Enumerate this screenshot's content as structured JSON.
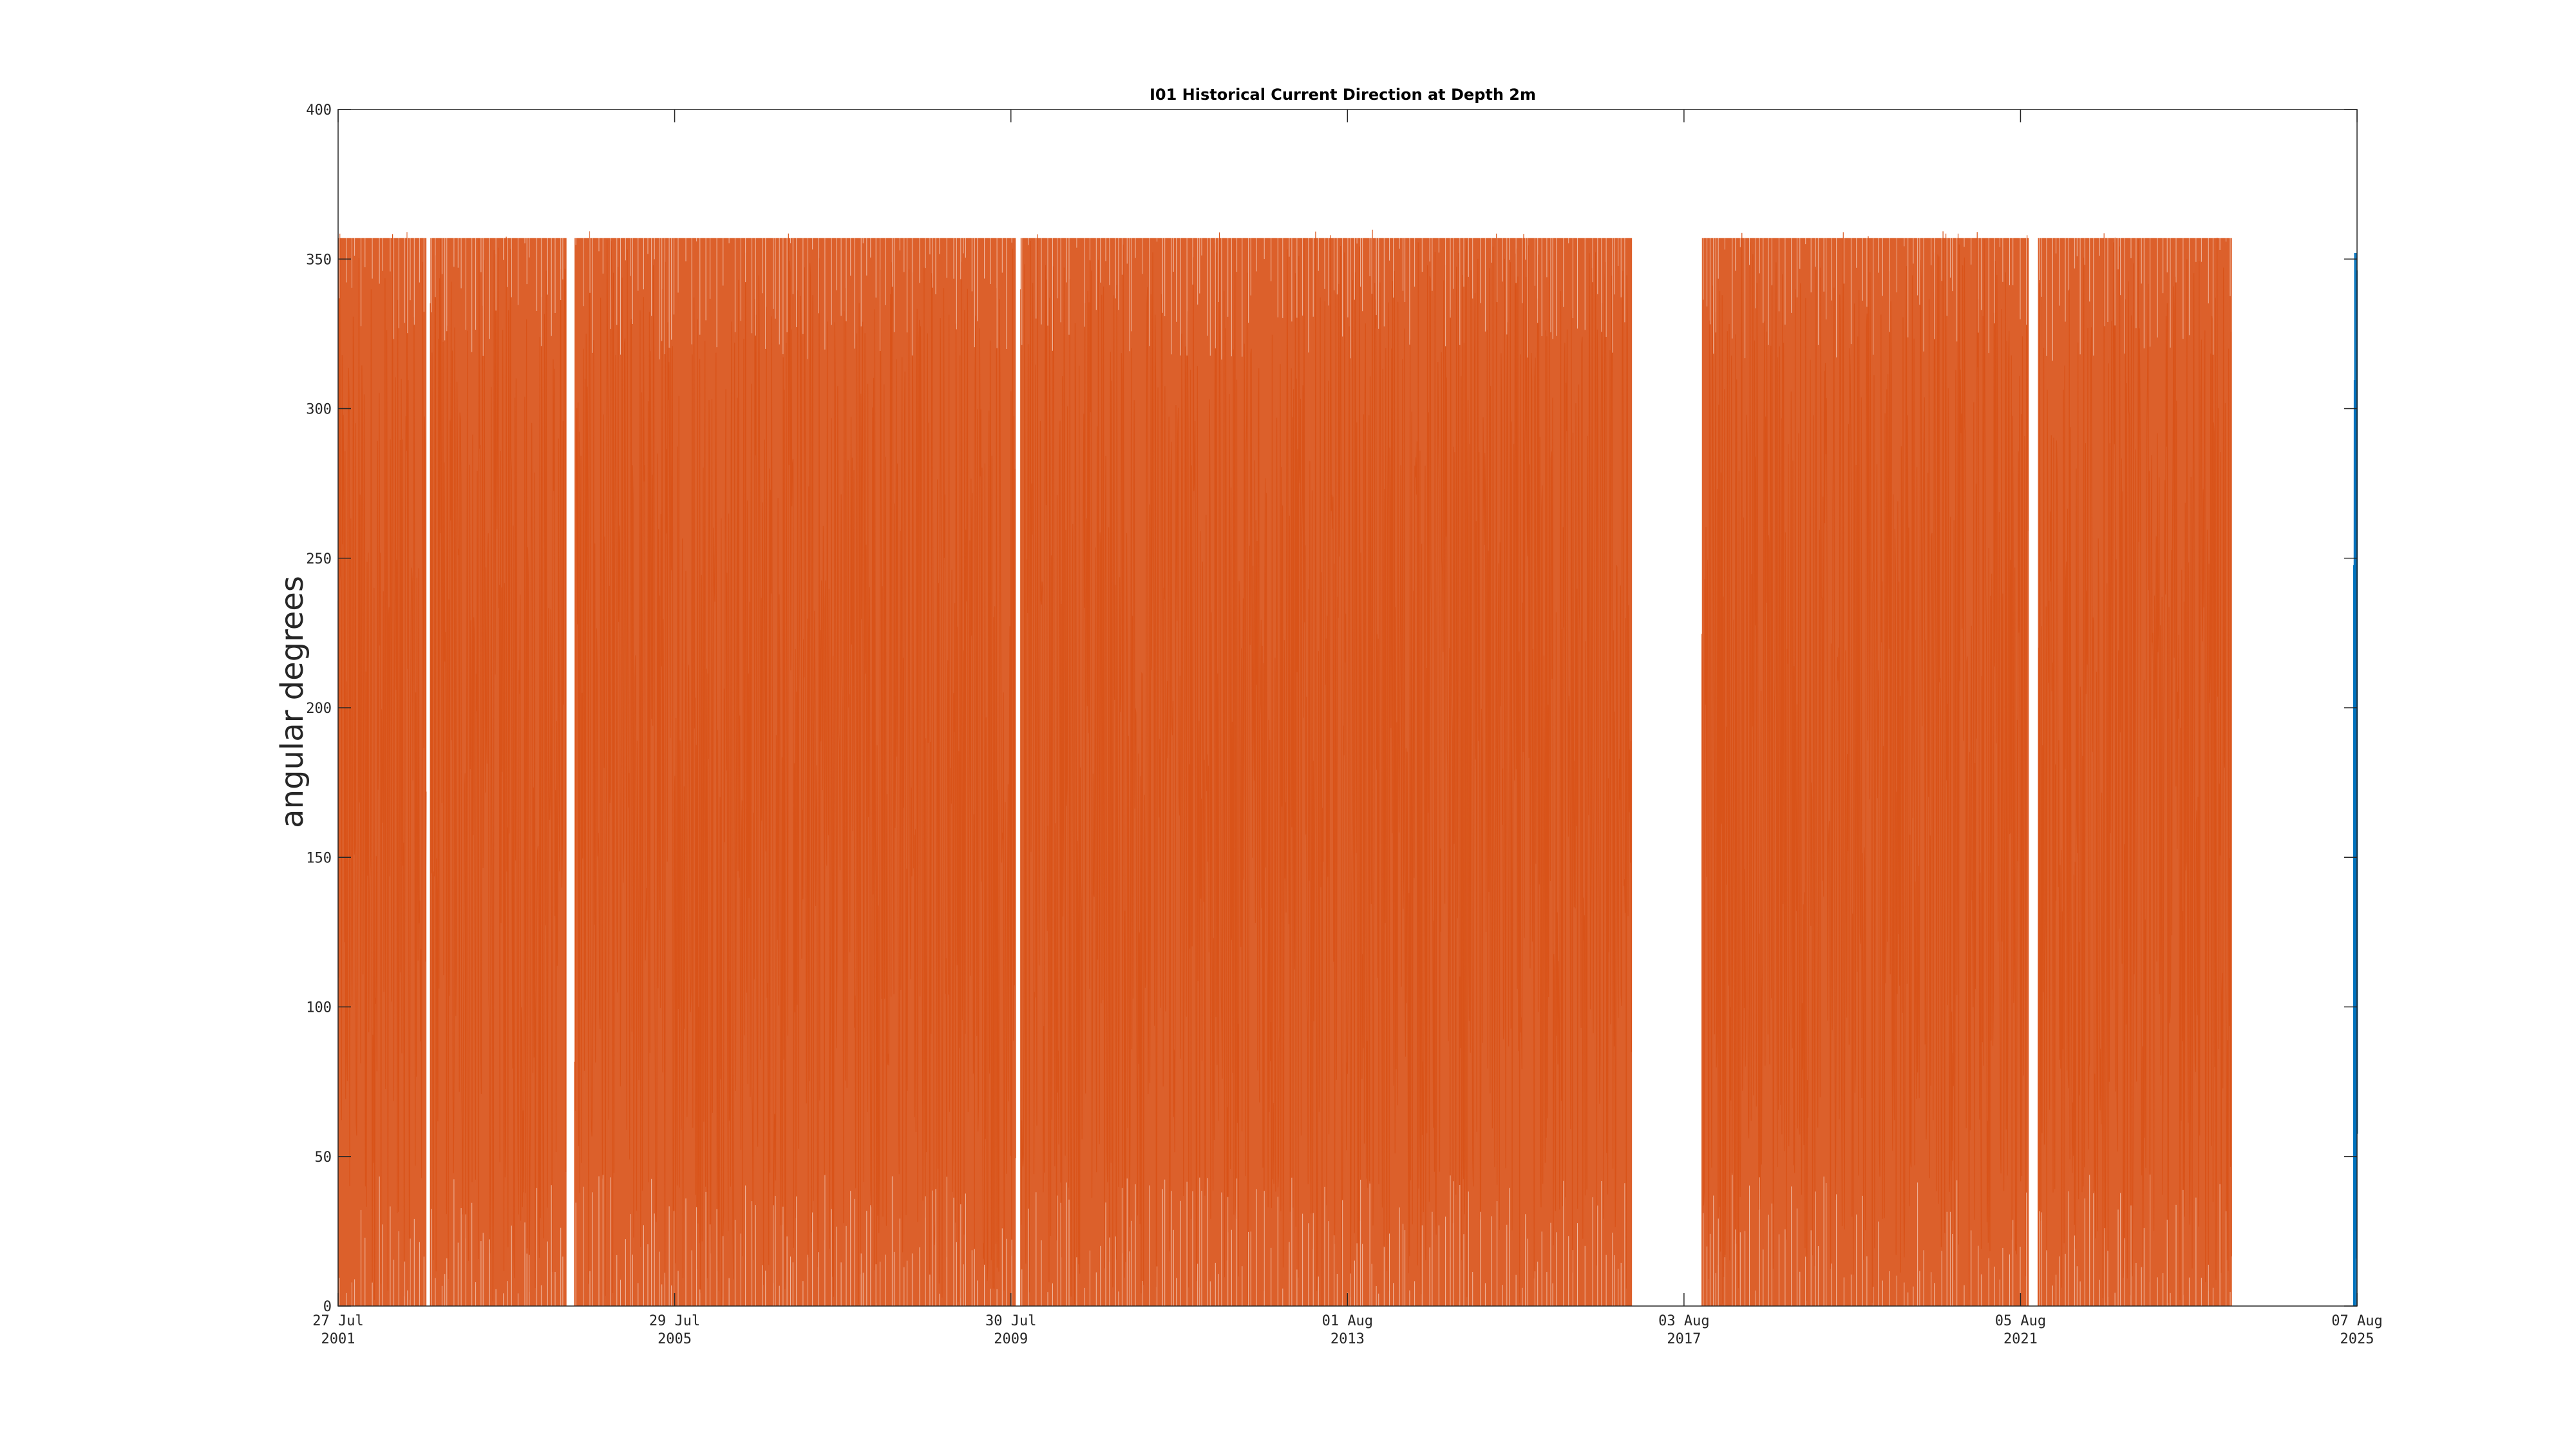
{
  "chart_data": {
    "type": "line",
    "title": "I01 Historical Current Direction at Depth 2m",
    "xlabel": "",
    "ylabel": "angular degrees",
    "xlim": [
      "2001-07-27",
      "2025-08-07"
    ],
    "ylim": [
      0,
      400
    ],
    "yticks": [
      0,
      50,
      100,
      150,
      200,
      250,
      300,
      350,
      400
    ],
    "xticks": [
      {
        "date": "2001-07-27",
        "line1": "27 Jul",
        "line2": "2001"
      },
      {
        "date": "2005-07-29",
        "line1": "29 Jul",
        "line2": "2005"
      },
      {
        "date": "2009-07-30",
        "line1": "30 Jul",
        "line2": "2009"
      },
      {
        "date": "2013-08-01",
        "line1": "01 Aug",
        "line2": "2013"
      },
      {
        "date": "2017-08-03",
        "line1": "03 Aug",
        "line2": "2017"
      },
      {
        "date": "2021-08-05",
        "line1": "05 Aug",
        "line2": "2021"
      },
      {
        "date": "2025-08-07",
        "line1": "07 Aug",
        "line2": "2025"
      }
    ],
    "grid": false,
    "legend": "none",
    "series": [
      {
        "color": "#D95319",
        "value_range": [
          0,
          360
        ],
        "segments": [
          [
            "2001-07-27",
            "2002-08-15"
          ],
          [
            "2002-09-01",
            "2004-04-15"
          ],
          [
            "2004-05-20",
            "2009-08-20"
          ],
          [
            "2009-09-10",
            "2016-12-20"
          ],
          [
            "2017-10-20",
            "2021-09-10"
          ],
          [
            "2021-10-20",
            "2024-02-10"
          ]
        ]
      },
      {
        "color": "#0072BD",
        "value_range": [
          0,
          355
        ],
        "segments": [
          [
            "2025-07-25",
            "2025-08-07"
          ]
        ]
      }
    ]
  }
}
